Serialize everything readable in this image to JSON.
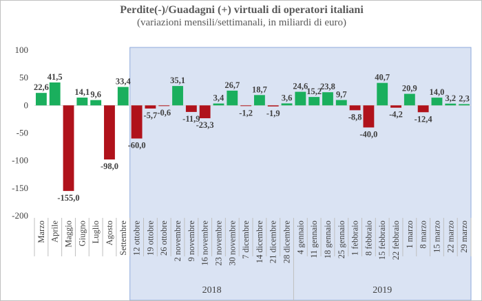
{
  "chart_data": {
    "type": "bar",
    "title": "Perdite(-)/Guadagni (+) virtuali di operatori italiani",
    "subtitle": "(variazioni mensili/settimanali, in miliardi di euro)",
    "categories": [
      "Marzo",
      "Aprile",
      "Maggio",
      "Giugno",
      "Luglio",
      "Agosto",
      "Settembre",
      "12 ottobre",
      "19 ottobre",
      "26 ottobre",
      "2 novembre",
      "9 novembre",
      "16 novembre",
      "23 novembre",
      "30 novembre",
      "7 dicembre",
      "14 dicembre",
      "21 dicembre",
      "28 dicembre",
      "4 gennaio",
      "11 gennaio",
      "18 gennaio",
      "25 gennaio",
      "1 febbraio",
      "8 febbraio",
      "15 febbraio",
      "22 febbraio",
      "1 marzo",
      "8 marzo",
      "15 marzo",
      "22 marzo",
      "29 marzo"
    ],
    "values": [
      22.6,
      41.5,
      -155.0,
      14.1,
      9.6,
      -98.0,
      33.4,
      -60.0,
      -5.7,
      -0.6,
      35.1,
      -11.9,
      -23.3,
      3.4,
      26.7,
      -1.2,
      18.7,
      -1.9,
      3.6,
      24.6,
      15.2,
      23.8,
      9.7,
      -8.8,
      -40.0,
      40.7,
      -4.2,
      20.9,
      -12.4,
      14.0,
      3.2,
      2.3
    ],
    "data_labels": [
      "22,6",
      "41,5",
      "-155,0",
      "14,1",
      "9,6",
      "-98,0",
      "33,4",
      "-60,0",
      "-5,7",
      "-0,6",
      "35,1",
      "-11,9",
      "-23,3",
      "3,4",
      "26,7",
      "-1,2",
      "18,7",
      "-1,9",
      "3,6",
      "24,6",
      "15,2",
      "23,8",
      "9,7",
      "-8,8",
      "-40,0",
      "40,7",
      "-4,2",
      "20,9",
      "-12,4",
      "14,0",
      "3,2",
      "2,3"
    ],
    "ylim": [
      -200,
      100
    ],
    "yticks": [
      100,
      50,
      0,
      -50,
      -100,
      -150,
      -200
    ],
    "year_groups": [
      {
        "label": "2018",
        "start": 7,
        "end": 18
      },
      {
        "label": "2019",
        "start": 19,
        "end": 31
      }
    ],
    "shaded_region": {
      "start": 7,
      "end": 31,
      "color": "#dae3f3"
    },
    "colors": {
      "positive": "#1aaf5d",
      "negative": "#b0121b",
      "text": "#404040",
      "shade_border": "#8eaadb"
    }
  }
}
